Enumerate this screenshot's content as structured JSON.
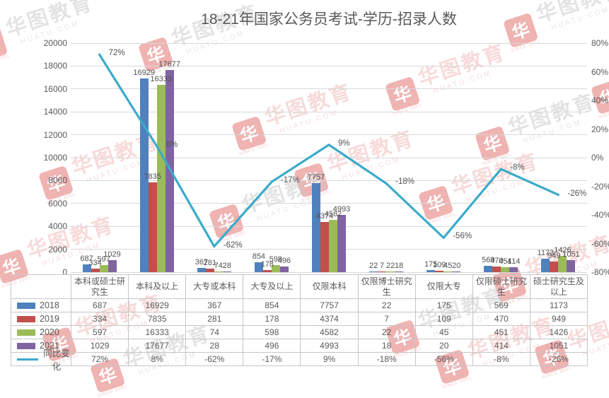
{
  "title": "18-21年国家公务员考试-学历-招录人数",
  "watermark": {
    "brand": "华图教育",
    "domain": "HUATU.COM",
    "logo_glyph": "华",
    "logo_caption": "SINCE 2001"
  },
  "chart_data": {
    "type": "combo-bar-line",
    "title": "18-21年国家公务员考试-学历-招录人数",
    "categories": [
      "本科或硕士研究生",
      "本科及以上",
      "大专或本科",
      "大专及以上",
      "仅限本科",
      "仅限博士研究生",
      "仅限大专",
      "仅限硕士研究生",
      "硕士研究生及以上"
    ],
    "series": [
      {
        "name": "2018",
        "type": "bar",
        "color": "#4F81BD",
        "values": [
          687,
          16929,
          367,
          854,
          7757,
          22,
          175,
          569,
          1173
        ]
      },
      {
        "name": "2019",
        "type": "bar",
        "color": "#C0504D",
        "values": [
          334,
          7835,
          281,
          178,
          4374,
          7,
          109,
          470,
          949
        ]
      },
      {
        "name": "2020",
        "type": "bar",
        "color": "#9BBB59",
        "values": [
          597,
          16333,
          74,
          598,
          4582,
          22,
          45,
          451,
          1426
        ]
      },
      {
        "name": "2021",
        "type": "bar",
        "color": "#8064A2",
        "values": [
          1029,
          17677,
          28,
          496,
          4993,
          18,
          20,
          414,
          1051
        ]
      },
      {
        "name": "同比变化",
        "type": "line",
        "color": "#3AABCA",
        "values_pct": [
          72,
          8,
          -62,
          -17,
          9,
          -18,
          -56,
          -8,
          -26
        ],
        "labels": [
          "72%",
          "8%",
          "-62%",
          "-17%",
          "9%",
          "-18%",
          "-56%",
          "-8%",
          "-26%"
        ]
      }
    ],
    "left_axis": {
      "min": 0,
      "max": 20000,
      "step": 2000,
      "tick_labels": [
        "20000",
        "18000",
        "16000",
        "14000",
        "12000",
        "10000",
        "8000",
        "6000",
        "4000",
        "2000",
        "0"
      ]
    },
    "right_axis": {
      "min": -80,
      "max": 80,
      "step": 20,
      "tick_labels": [
        "80%",
        "60%",
        "40%",
        "20%",
        "0%",
        "-20%",
        "-40%",
        "-60%",
        "-80%"
      ]
    },
    "grid": "horizontal",
    "gridline_color": "#D9D9D9",
    "text_color": "#595959",
    "legend_position": "left-of-data-table"
  }
}
